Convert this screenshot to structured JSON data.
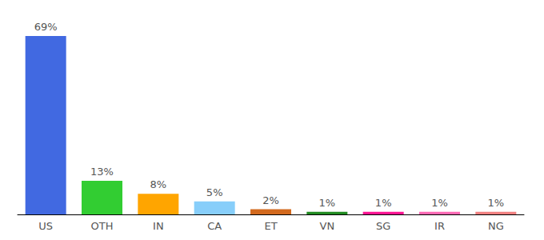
{
  "chart_data": {
    "type": "bar",
    "categories": [
      "US",
      "OTH",
      "IN",
      "CA",
      "ET",
      "VN",
      "SG",
      "IR",
      "NG"
    ],
    "values": [
      69,
      13,
      8,
      5,
      2,
      1,
      1,
      1,
      1
    ],
    "value_labels": [
      "69%",
      "13%",
      "8%",
      "5%",
      "2%",
      "1%",
      "1%",
      "1%",
      "1%"
    ],
    "colors": [
      "#4169e1",
      "#32cd32",
      "#ffa500",
      "#87cefa",
      "#d2691e",
      "#228b22",
      "#ff1493",
      "#ff69b4",
      "#f08080"
    ],
    "data_labels": true,
    "tick_labels": "x",
    "grid": false
  }
}
